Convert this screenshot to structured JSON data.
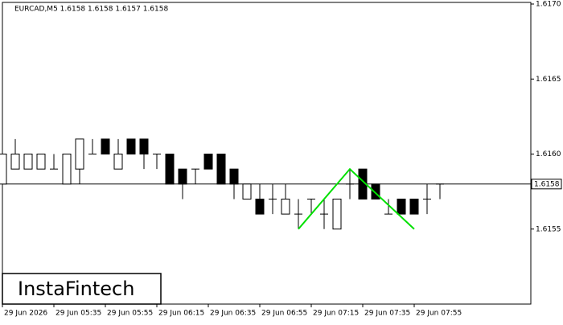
{
  "chart_data": {
    "type": "candlestick",
    "header": "EURCAD,M5  1.6158 1.6158 1.6157 1.6158",
    "categories": [
      "29 Jun 2026",
      null,
      null,
      null,
      "29 Jun 05:35",
      null,
      null,
      null,
      "29 Jun 05:55",
      null,
      null,
      null,
      "29 Jun 06:15",
      null,
      null,
      null,
      "29 Jun 06:35",
      null,
      null,
      null,
      "29 Jun 06:55",
      null,
      null,
      null,
      "29 Jun 07:15",
      null,
      null,
      null,
      "29 Jun 07:35",
      null,
      null,
      null,
      "29 Jun 07:55",
      null,
      null
    ],
    "open": [
      1.6158,
      1.6159,
      1.6159,
      1.6159,
      1.6159,
      1.6158,
      1.6159,
      1.616,
      1.6161,
      1.6159,
      1.6161,
      1.6161,
      1.616,
      1.616,
      1.6159,
      1.6159,
      1.616,
      1.616,
      1.6159,
      1.6157,
      1.6157,
      1.6157,
      1.6156,
      1.6156,
      1.6157,
      1.6156,
      1.6155,
      1.6158,
      1.6159,
      1.6158,
      1.6156,
      1.6157,
      1.6157,
      1.6157,
      1.6158
    ],
    "high": [
      1.616,
      1.6161,
      1.616,
      1.616,
      1.616,
      1.616,
      1.6161,
      1.6161,
      1.6161,
      1.6161,
      1.6161,
      1.6161,
      1.616,
      1.616,
      1.6159,
      1.6159,
      1.616,
      1.616,
      1.6159,
      1.6158,
      1.6158,
      1.6158,
      1.6158,
      1.6157,
      1.6157,
      1.6157,
      1.6157,
      1.6159,
      1.6159,
      1.6158,
      1.6157,
      1.6157,
      1.6157,
      1.6158,
      1.6158
    ],
    "low": [
      1.6158,
      1.6159,
      1.6159,
      1.6159,
      1.6159,
      1.6158,
      1.6158,
      1.616,
      1.616,
      1.6159,
      1.616,
      1.6159,
      1.6159,
      1.6158,
      1.6157,
      1.6158,
      1.6159,
      1.6158,
      1.6157,
      1.6157,
      1.6156,
      1.6156,
      1.6156,
      1.6155,
      1.6156,
      1.6155,
      1.6155,
      1.6157,
      1.6157,
      1.6157,
      1.6156,
      1.6156,
      1.6156,
      1.6156,
      1.6157
    ],
    "close": [
      1.616,
      1.616,
      1.616,
      1.616,
      1.6159,
      1.616,
      1.6161,
      1.616,
      1.616,
      1.616,
      1.616,
      1.616,
      1.616,
      1.6158,
      1.6158,
      1.6159,
      1.6159,
      1.6158,
      1.6158,
      1.6158,
      1.6156,
      1.6157,
      1.6157,
      1.6156,
      1.6157,
      1.6156,
      1.6157,
      1.6158,
      1.6157,
      1.6157,
      1.6156,
      1.6156,
      1.6156,
      1.6157,
      1.6158
    ],
    "ylim": [
      1.615,
      1.617
    ],
    "yticks": [
      {
        "value": 1.617,
        "label": "1.6170"
      },
      1.6165,
      {
        "value": 1.616,
        "label": "1.6160"
      },
      1.6155
    ],
    "last_price": 1.6158,
    "pattern": {
      "color": "#00e000",
      "x_index": [
        23,
        27,
        32
      ],
      "values": [
        1.6155,
        1.6159,
        1.6155
      ]
    },
    "logo": "InstaFintech"
  }
}
